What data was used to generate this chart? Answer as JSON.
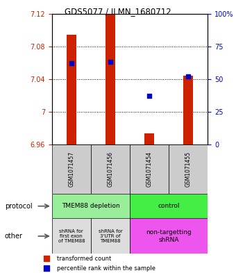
{
  "title": "GDS5077 / ILMN_1680712",
  "samples": [
    "GSM1071457",
    "GSM1071456",
    "GSM1071454",
    "GSM1071455"
  ],
  "transformed_counts": [
    7.094,
    7.12,
    6.974,
    7.044
  ],
  "transformed_base": 6.96,
  "percentile_ranks": [
    62,
    63,
    37,
    52
  ],
  "ylim_left": [
    6.96,
    7.12
  ],
  "ylim_right": [
    0,
    100
  ],
  "yticks_left": [
    6.96,
    7.0,
    7.04,
    7.08,
    7.12
  ],
  "ytick_labels_left": [
    "6.96",
    "7",
    "7.04",
    "7.08",
    "7.12"
  ],
  "yticks_right": [
    0,
    25,
    50,
    75,
    100
  ],
  "ytick_labels_right": [
    "0",
    "25",
    "50",
    "75",
    "100%"
  ],
  "bar_color": "#cc2200",
  "dot_color": "#0000cc",
  "protocol_labels": [
    "TMEM88 depletion",
    "control"
  ],
  "other_labels": [
    "shRNA for\nfirst exon\nof TMEM88",
    "shRNA for\n3'UTR of\nTMEM88",
    "non-targetting\nshRNA"
  ],
  "protocol_left_color": "#99ee99",
  "protocol_right_color": "#44ee44",
  "other_left_color": "#dddddd",
  "other_right_color": "#ee55ee",
  "sample_box_color": "#cccccc",
  "bar_width": 0.25
}
